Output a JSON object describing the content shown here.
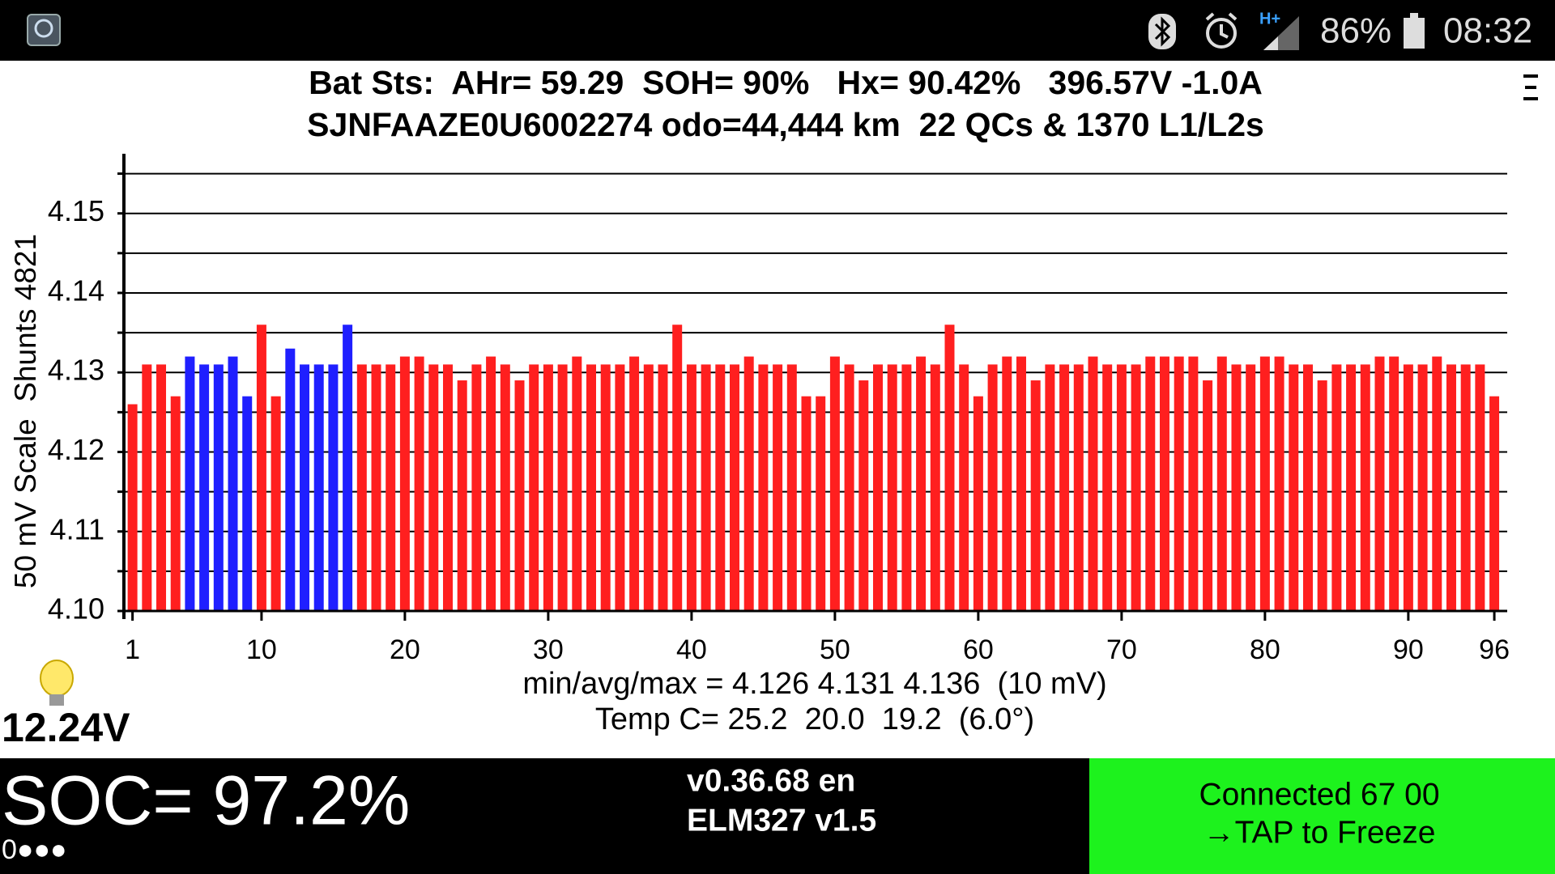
{
  "status_bar": {
    "network": "H+",
    "battery": "86%",
    "time": "08:32"
  },
  "header": {
    "line1": "Bat Sts:  AHr= 59.29  SOH= 90%   Hx= 90.42%   396.57V -1.0A",
    "line2": "SJNFAAZE0U6002274 odo=44,444 km  22 QCs & 1370 L1/L2s"
  },
  "chart_data": {
    "type": "bar",
    "y_label": "50 mV Scale  Shunts 4821",
    "x": [
      1,
      2,
      3,
      4,
      5,
      6,
      7,
      8,
      9,
      10,
      11,
      12,
      13,
      14,
      15,
      16,
      17,
      18,
      19,
      20,
      21,
      22,
      23,
      24,
      25,
      26,
      27,
      28,
      29,
      30,
      31,
      32,
      33,
      34,
      35,
      36,
      37,
      38,
      39,
      40,
      41,
      42,
      43,
      44,
      45,
      46,
      47,
      48,
      49,
      50,
      51,
      52,
      53,
      54,
      55,
      56,
      57,
      58,
      59,
      60,
      61,
      62,
      63,
      64,
      65,
      66,
      67,
      68,
      69,
      70,
      71,
      72,
      73,
      74,
      75,
      76,
      77,
      78,
      79,
      80,
      81,
      82,
      83,
      84,
      85,
      86,
      87,
      88,
      89,
      90,
      91,
      92,
      93,
      94,
      95,
      96
    ],
    "values": [
      4.126,
      4.131,
      4.131,
      4.127,
      4.132,
      4.131,
      4.131,
      4.132,
      4.127,
      4.136,
      4.127,
      4.133,
      4.131,
      4.131,
      4.131,
      4.136,
      4.131,
      4.131,
      4.131,
      4.132,
      4.132,
      4.131,
      4.131,
      4.129,
      4.131,
      4.132,
      4.131,
      4.129,
      4.131,
      4.131,
      4.131,
      4.132,
      4.131,
      4.131,
      4.131,
      4.132,
      4.131,
      4.131,
      4.136,
      4.131,
      4.131,
      4.131,
      4.131,
      4.132,
      4.131,
      4.131,
      4.131,
      4.127,
      4.127,
      4.132,
      4.131,
      4.129,
      4.131,
      4.131,
      4.131,
      4.132,
      4.131,
      4.136,
      4.131,
      4.127,
      4.131,
      4.132,
      4.132,
      4.129,
      4.131,
      4.131,
      4.131,
      4.132,
      4.131,
      4.131,
      4.131,
      4.132,
      4.132,
      4.132,
      4.132,
      4.129,
      4.132,
      4.131,
      4.131,
      4.132,
      4.132,
      4.131,
      4.131,
      4.129,
      4.131,
      4.131,
      4.131,
      4.132,
      4.132,
      4.131,
      4.131,
      4.132,
      4.131,
      4.131,
      4.131,
      4.127
    ],
    "colors": [
      "#ff1f1f",
      "#ff1f1f",
      "#ff1f1f",
      "#ff1f1f",
      "#1f1fff",
      "#1f1fff",
      "#1f1fff",
      "#1f1fff",
      "#1f1fff",
      "#ff1f1f",
      "#ff1f1f",
      "#1f1fff",
      "#1f1fff",
      "#1f1fff",
      "#1f1fff",
      "#1f1fff",
      "#ff1f1f",
      "#ff1f1f",
      "#ff1f1f",
      "#ff1f1f",
      "#ff1f1f",
      "#ff1f1f",
      "#ff1f1f",
      "#ff1f1f",
      "#ff1f1f",
      "#ff1f1f",
      "#ff1f1f",
      "#ff1f1f",
      "#ff1f1f",
      "#ff1f1f",
      "#ff1f1f",
      "#ff1f1f",
      "#ff1f1f",
      "#ff1f1f",
      "#ff1f1f",
      "#ff1f1f",
      "#ff1f1f",
      "#ff1f1f",
      "#ff1f1f",
      "#ff1f1f",
      "#ff1f1f",
      "#ff1f1f",
      "#ff1f1f",
      "#ff1f1f",
      "#ff1f1f",
      "#ff1f1f",
      "#ff1f1f",
      "#ff1f1f",
      "#ff1f1f",
      "#ff1f1f",
      "#ff1f1f",
      "#ff1f1f",
      "#ff1f1f",
      "#ff1f1f",
      "#ff1f1f",
      "#ff1f1f",
      "#ff1f1f",
      "#ff1f1f",
      "#ff1f1f",
      "#ff1f1f",
      "#ff1f1f",
      "#ff1f1f",
      "#ff1f1f",
      "#ff1f1f",
      "#ff1f1f",
      "#ff1f1f",
      "#ff1f1f",
      "#ff1f1f",
      "#ff1f1f",
      "#ff1f1f",
      "#ff1f1f",
      "#ff1f1f",
      "#ff1f1f",
      "#ff1f1f",
      "#ff1f1f",
      "#ff1f1f",
      "#ff1f1f",
      "#ff1f1f",
      "#ff1f1f",
      "#ff1f1f",
      "#ff1f1f",
      "#ff1f1f",
      "#ff1f1f",
      "#ff1f1f",
      "#ff1f1f",
      "#ff1f1f",
      "#ff1f1f",
      "#ff1f1f",
      "#ff1f1f",
      "#ff1f1f",
      "#ff1f1f",
      "#ff1f1f",
      "#ff1f1f",
      "#ff1f1f",
      "#ff1f1f",
      "#ff1f1f"
    ],
    "xlim": [
      0.4,
      96.9
    ],
    "xticks": [
      1,
      10,
      20,
      30,
      40,
      50,
      60,
      70,
      80,
      90,
      96
    ],
    "ylim": [
      4.1,
      4.1575
    ],
    "yticks": [
      {
        "value": 4.1,
        "label": "4.10"
      },
      4.11,
      4.12,
      4.13,
      4.14,
      4.15
    ],
    "minor_yticks": [
      4.105,
      4.115,
      4.125,
      4.135,
      4.145,
      4.155
    ],
    "grid": true,
    "stats": "min/avg/max = 4.126 4.131 4.136  (10 mV)",
    "temps": "Temp C= 25.2  20.0  19.2  (6.0°)"
  },
  "aux_battery": "12.24V",
  "footer": {
    "soc": "SOC= 97.2%",
    "dots": "0●●●",
    "version": "v0.36.68 en",
    "adapter": "ELM327 v1.5",
    "status_line1": "Connected 67 00",
    "status_line2": "→TAP to Freeze"
  }
}
